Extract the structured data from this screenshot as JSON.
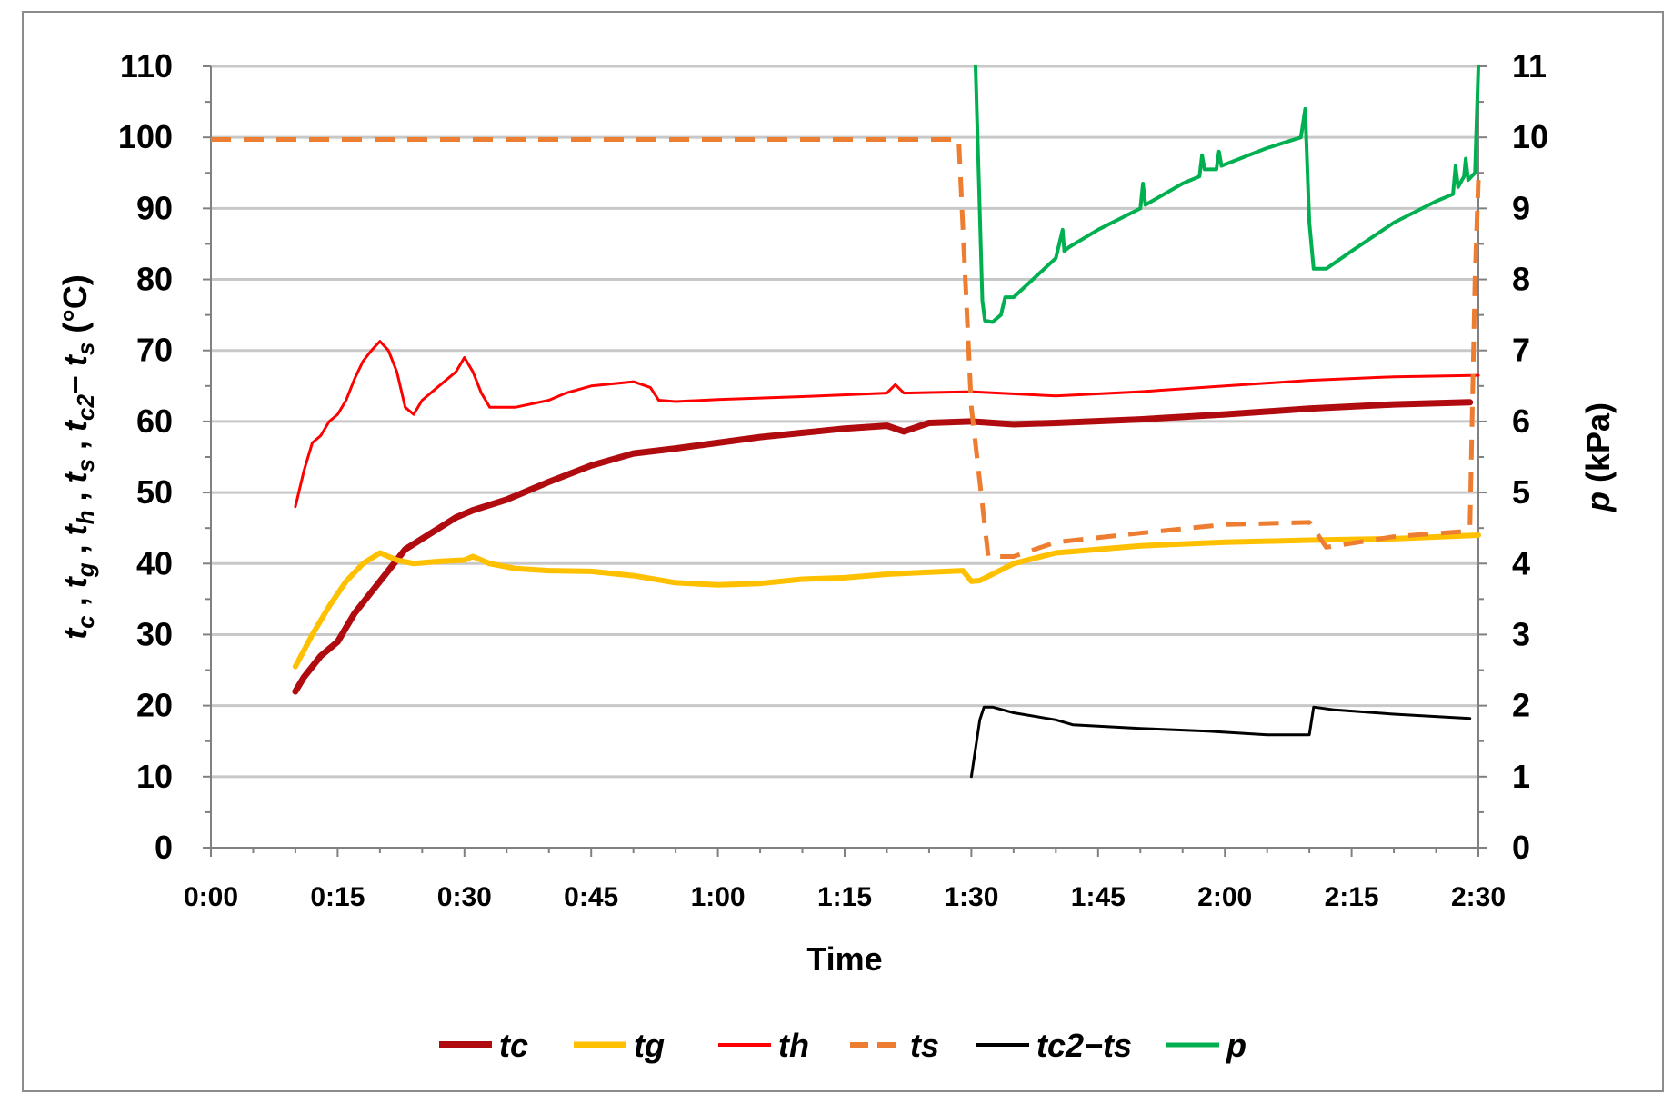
{
  "chart_data": {
    "type": "line",
    "xlabel": "Time",
    "ylabel_left_parts": [
      "t",
      "c",
      " , ",
      "t",
      "g",
      " , ",
      "t",
      "h",
      " , ",
      "t",
      "s",
      " , ",
      "t",
      "c2",
      "− ",
      "t",
      "s",
      " (°C)"
    ],
    "ylabel_right_parts": [
      "p",
      " (kPa)"
    ],
    "x_ticks": [
      "0:00",
      "0:15",
      "0:30",
      "0:45",
      "1:00",
      "1:15",
      "1:30",
      "1:45",
      "2:00",
      "2:15",
      "2:30"
    ],
    "x_range_minutes": [
      0,
      150
    ],
    "y_left_ticks": [
      "0",
      "10",
      "20",
      "30",
      "40",
      "50",
      "60",
      "70",
      "80",
      "90",
      "100",
      "110"
    ],
    "y_left_range": [
      0,
      110
    ],
    "y_right_ticks": [
      "0",
      "1",
      "2",
      "3",
      "4",
      "5",
      "6",
      "7",
      "8",
      "9",
      "10",
      "11"
    ],
    "y_right_range": [
      0,
      11
    ],
    "grid": "horizontal",
    "legend_position": "bottom",
    "series": [
      {
        "name": "tc",
        "color": "#b00c10",
        "width": 7,
        "dash": "",
        "axis": "left",
        "points": [
          [
            10,
            22
          ],
          [
            11,
            24
          ],
          [
            13,
            27
          ],
          [
            15,
            29
          ],
          [
            17,
            33
          ],
          [
            19,
            36
          ],
          [
            21,
            39
          ],
          [
            23,
            42
          ],
          [
            25,
            43.5
          ],
          [
            27,
            45
          ],
          [
            29,
            46.5
          ],
          [
            31,
            47.5
          ],
          [
            35,
            49
          ],
          [
            40,
            51.5
          ],
          [
            45,
            53.8
          ],
          [
            50,
            55.5
          ],
          [
            55,
            56.2
          ],
          [
            60,
            57
          ],
          [
            65,
            57.8
          ],
          [
            70,
            58.4
          ],
          [
            75,
            59
          ],
          [
            80,
            59.4
          ],
          [
            82,
            58.6
          ],
          [
            85,
            59.8
          ],
          [
            90,
            60
          ],
          [
            95,
            59.6
          ],
          [
            100,
            59.8
          ],
          [
            110,
            60.3
          ],
          [
            120,
            61
          ],
          [
            130,
            61.8
          ],
          [
            140,
            62.4
          ],
          [
            149,
            62.7
          ]
        ]
      },
      {
        "name": "tg",
        "color": "#ffc000",
        "width": 6,
        "dash": "",
        "axis": "left",
        "points": [
          [
            10,
            25.5
          ],
          [
            12,
            30
          ],
          [
            14,
            34
          ],
          [
            16,
            37.5
          ],
          [
            18,
            40
          ],
          [
            20,
            41.5
          ],
          [
            22,
            40.5
          ],
          [
            24,
            40
          ],
          [
            27,
            40.3
          ],
          [
            30,
            40.5
          ],
          [
            31,
            41
          ],
          [
            33,
            40
          ],
          [
            36,
            39.3
          ],
          [
            40,
            39
          ],
          [
            45,
            38.9
          ],
          [
            50,
            38.3
          ],
          [
            55,
            37.3
          ],
          [
            60,
            37
          ],
          [
            65,
            37.2
          ],
          [
            70,
            37.8
          ],
          [
            75,
            38
          ],
          [
            80,
            38.5
          ],
          [
            85,
            38.8
          ],
          [
            89,
            39
          ],
          [
            90,
            37.5
          ],
          [
            91,
            37.6
          ],
          [
            93,
            38.8
          ],
          [
            95,
            40
          ],
          [
            100,
            41.5
          ],
          [
            110,
            42.5
          ],
          [
            120,
            43
          ],
          [
            130,
            43.3
          ],
          [
            140,
            43.5
          ],
          [
            150,
            44
          ]
        ]
      },
      {
        "name": "th",
        "color": "#ff0000",
        "width": 3,
        "dash": "",
        "axis": "left",
        "points": [
          [
            10,
            48
          ],
          [
            11,
            53
          ],
          [
            12,
            57
          ],
          [
            13,
            58
          ],
          [
            14,
            60
          ],
          [
            15,
            61
          ],
          [
            16,
            63
          ],
          [
            17,
            66
          ],
          [
            18,
            68.5
          ],
          [
            19,
            70
          ],
          [
            20,
            71.3
          ],
          [
            21,
            70
          ],
          [
            22,
            67
          ],
          [
            23,
            62
          ],
          [
            24,
            61
          ],
          [
            25,
            63
          ],
          [
            27,
            65
          ],
          [
            29,
            67
          ],
          [
            30,
            69
          ],
          [
            31,
            67
          ],
          [
            32,
            64
          ],
          [
            33,
            62
          ],
          [
            36,
            62
          ],
          [
            40,
            63
          ],
          [
            42,
            64
          ],
          [
            45,
            65
          ],
          [
            50,
            65.6
          ],
          [
            52,
            64.8
          ],
          [
            53,
            63
          ],
          [
            55,
            62.8
          ],
          [
            60,
            63.1
          ],
          [
            70,
            63.5
          ],
          [
            80,
            64
          ],
          [
            81,
            65.2
          ],
          [
            82,
            64
          ],
          [
            90,
            64.2
          ],
          [
            100,
            63.6
          ],
          [
            110,
            64.2
          ],
          [
            120,
            65
          ],
          [
            130,
            65.8
          ],
          [
            140,
            66.3
          ],
          [
            150,
            66.5
          ]
        ]
      },
      {
        "name": "ts",
        "color": "#ed7d31",
        "width": 5,
        "dash": "22 14",
        "axis": "left",
        "points": [
          [
            0,
            99.7
          ],
          [
            88.5,
            99.7
          ],
          [
            90,
            62
          ],
          [
            92,
            41
          ],
          [
            95,
            41
          ],
          [
            100,
            43
          ],
          [
            110,
            44.3
          ],
          [
            120,
            45.5
          ],
          [
            130,
            45.8
          ],
          [
            132,
            42.3
          ],
          [
            140,
            43.8
          ],
          [
            148,
            44.5
          ],
          [
            149,
            45
          ],
          [
            149.6,
            80
          ],
          [
            150,
            94
          ]
        ]
      },
      {
        "name": "tc2−ts",
        "color": "#000000",
        "width": 3,
        "dash": "",
        "axis": "left",
        "points": [
          [
            90,
            10
          ],
          [
            91,
            18
          ],
          [
            91.5,
            19.8
          ],
          [
            92.5,
            19.8
          ],
          [
            95,
            19
          ],
          [
            100,
            18
          ],
          [
            102,
            17.3
          ],
          [
            110,
            16.8
          ],
          [
            118,
            16.4
          ],
          [
            125,
            15.9
          ],
          [
            130,
            15.9
          ],
          [
            130.5,
            19.8
          ],
          [
            133,
            19.4
          ],
          [
            140,
            18.8
          ],
          [
            149,
            18.2
          ]
        ]
      },
      {
        "name": "p",
        "color": "#00b050",
        "width": 4,
        "dash": "",
        "axis": "right",
        "points": [
          [
            90.5,
            11
          ],
          [
            91.3,
            7.7
          ],
          [
            91.6,
            7.42
          ],
          [
            92.5,
            7.4
          ],
          [
            93.5,
            7.5
          ],
          [
            94,
            7.75
          ],
          [
            95,
            7.75
          ],
          [
            100,
            8.3
          ],
          [
            100.8,
            8.7
          ],
          [
            101,
            8.4
          ],
          [
            101.5,
            8.45
          ],
          [
            105,
            8.7
          ],
          [
            110,
            9.0
          ],
          [
            110.3,
            9.35
          ],
          [
            110.6,
            9.05
          ],
          [
            115,
            9.35
          ],
          [
            117,
            9.45
          ],
          [
            117.3,
            9.75
          ],
          [
            117.6,
            9.55
          ],
          [
            119,
            9.55
          ],
          [
            119.3,
            9.8
          ],
          [
            119.6,
            9.6
          ],
          [
            125,
            9.85
          ],
          [
            129,
            10.0
          ],
          [
            129.5,
            10.4
          ],
          [
            130,
            8.8
          ],
          [
            130.5,
            8.15
          ],
          [
            132,
            8.15
          ],
          [
            135,
            8.4
          ],
          [
            140,
            8.8
          ],
          [
            145,
            9.1
          ],
          [
            147,
            9.2
          ],
          [
            147.3,
            9.6
          ],
          [
            147.6,
            9.3
          ],
          [
            148.3,
            9.45
          ],
          [
            148.5,
            9.7
          ],
          [
            148.8,
            9.4
          ],
          [
            149.6,
            9.5
          ],
          [
            150,
            11
          ]
        ]
      }
    ]
  }
}
